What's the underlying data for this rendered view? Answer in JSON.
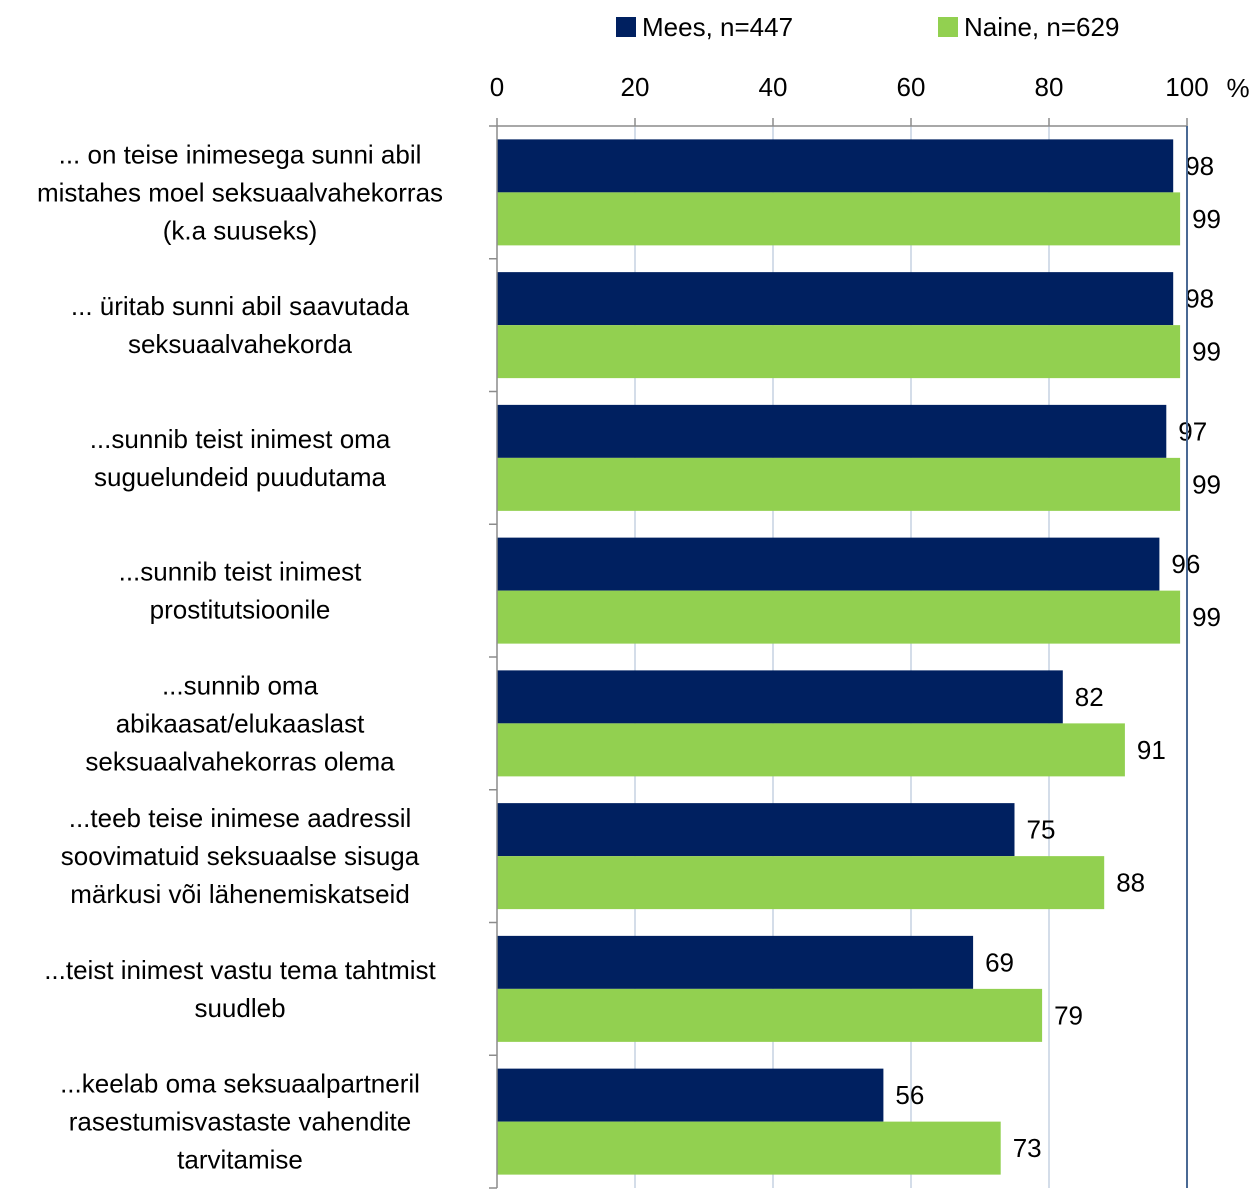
{
  "chart_data": {
    "type": "bar",
    "orientation": "horizontal",
    "xlim": [
      0,
      100
    ],
    "ticks": [
      "0",
      "20",
      "40",
      "60",
      "80",
      "100"
    ],
    "unit": "%",
    "legend_position": "top",
    "grid": true,
    "categories": [
      [
        "... on teise inimesega sunni abil",
        "mistahes moel seksuaalvahekorras",
        "(k.a  suuseks)"
      ],
      [
        "... üritab sunni abil saavutada",
        "seksuaalvahekorda"
      ],
      [
        "...sunnib teist inimest oma",
        "suguelundeid puudutama"
      ],
      [
        "...sunnib teist inimest",
        "prostitutsioonile"
      ],
      [
        "...sunnib oma",
        "abikaasat/elukaaslast",
        "seksuaalvahekorras olema"
      ],
      [
        "...teeb teise inimese aadressil",
        "soovimatuid seksuaalse sisuga",
        "märkusi või lähenemiskatseid"
      ],
      [
        "...teist inimest vastu tema tahtmist",
        "suudleb"
      ],
      [
        "...keelab oma seksuaalpartneril",
        "rasestumisvastaste vahendite",
        "tarvitamise"
      ]
    ],
    "series": [
      {
        "name": "Mees, n=447",
        "color": "#002060",
        "values": [
          98,
          98,
          97,
          96,
          82,
          75,
          69,
          56
        ]
      },
      {
        "name": "Naine, n=629",
        "color": "#92D050",
        "values": [
          99,
          99,
          99,
          99,
          91,
          88,
          79,
          73
        ]
      }
    ]
  }
}
